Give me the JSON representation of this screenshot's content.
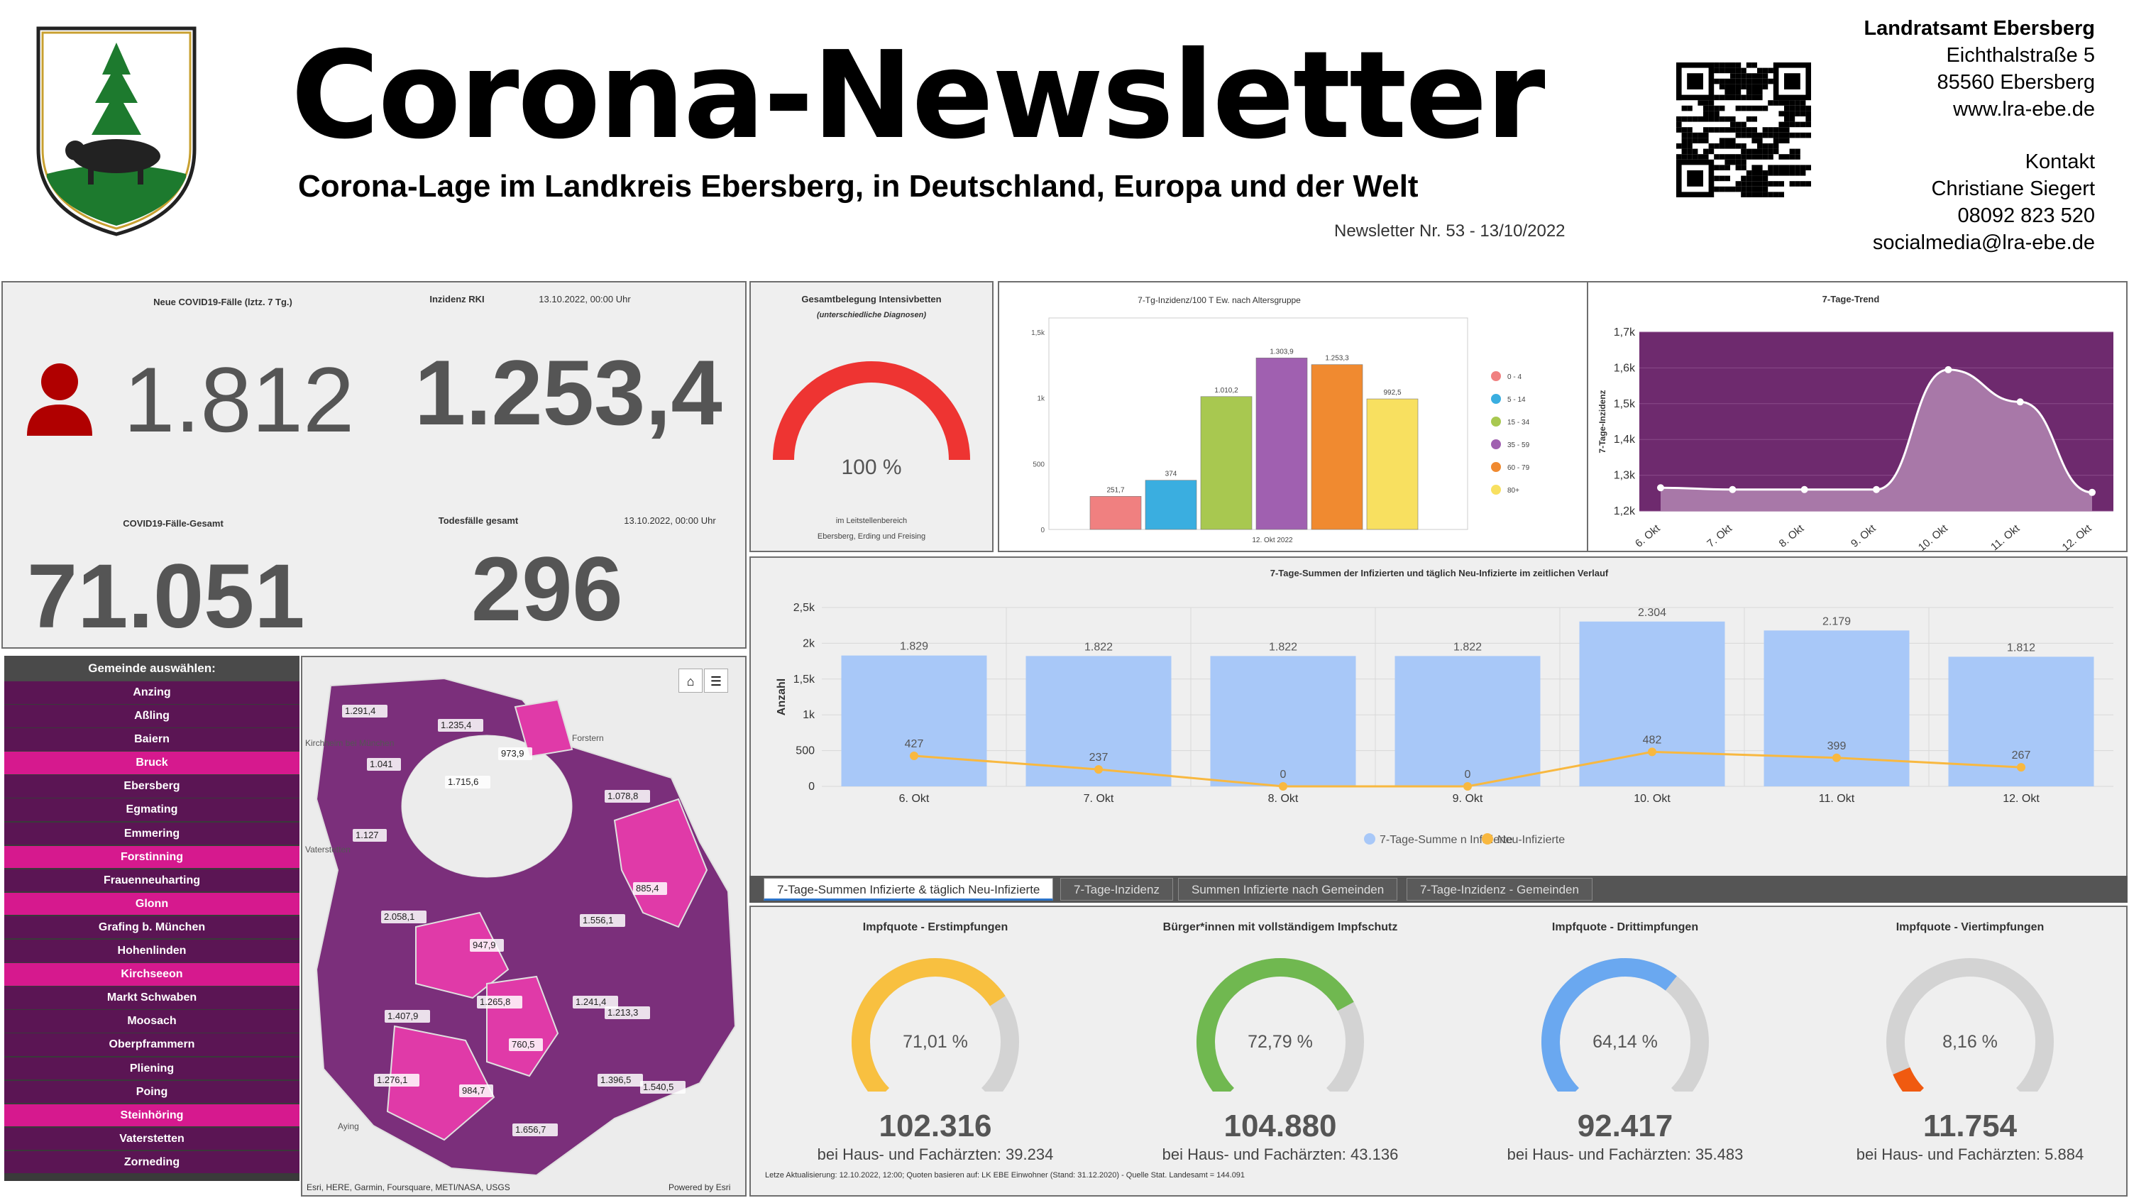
{
  "header": {
    "title": "Corona-Newsletter",
    "subtitle": "Corona-Lage im Landkreis Ebersberg, in Deutschland, Europa und der Welt",
    "newsletter_nr": "Newsletter Nr. 53 - 13/10/2022"
  },
  "contact": {
    "org": "Landratsamt Ebersberg",
    "street": "Eichthalstraße 5",
    "city": "85560 Ebersberg",
    "web": "www.lra-ebe.de",
    "kontakt": "Kontakt",
    "name": "Christiane Siegert",
    "phone": "08092 823 520",
    "email": "socialmedia@lra-ebe.de"
  },
  "kpi": {
    "new_cases_label": "Neue COVID19-Fälle (lztz. 7 Tg.)",
    "incidence_label": "Inzidenz RKI",
    "date1": "13.10.2022, 00:00 Uhr",
    "new_cases": "1.812",
    "incidence": "1.253,4",
    "total_label": "COVID19-Fälle-Gesamt",
    "deaths_label": "Todesfälle gesamt",
    "date2": "13.10.2022, 00:00 Uhr",
    "total": "71.051",
    "deaths": "296"
  },
  "icu": {
    "title": "Gesamtbelegung Intensivbetten",
    "subtitle": "(unterschiedliche Diagnosen)",
    "value": "100 %",
    "fraction": 1.0,
    "note1": "im Leitstellenbereich",
    "note2": "Ebersberg, Erding und Freising",
    "color": "#ee3432"
  },
  "age_chart": {
    "title": "7-Tg-Inzidenz/100 T Ew. nach Altersgruppe",
    "xlabel": "12. Okt 2022",
    "yticks": [
      "1,5k",
      "1k",
      "500",
      "0"
    ],
    "ymax": 1500,
    "bars": [
      {
        "label": "0 - 4",
        "value": 251.7,
        "text": "251,7",
        "color": "#f08080"
      },
      {
        "label": "5 - 14",
        "value": 374,
        "text": "374",
        "color": "#3aaee0"
      },
      {
        "label": "15 - 34",
        "value": 1010.2,
        "text": "1.010,2",
        "color": "#a8c850"
      },
      {
        "label": "35 - 59",
        "value": 1303.9,
        "text": "1.303,9",
        "color": "#a060b0"
      },
      {
        "label": "60 - 79",
        "value": 1253.3,
        "text": "1.253,3",
        "color": "#f08a30"
      },
      {
        "label": "80+",
        "value": 992.5,
        "text": "992,5",
        "color": "#f8e060"
      }
    ]
  },
  "trend": {
    "title": "7-Tage-Trend",
    "ylabel": "7-Tage-Inzidenz",
    "yticks": [
      "1,7k",
      "1,6k",
      "1,5k",
      "1,4k",
      "1,3k",
      "1,2k"
    ],
    "ymin": 1200,
    "ymax": 1700,
    "x": [
      "6. Okt",
      "7. Okt",
      "8. Okt",
      "9. Okt",
      "10. Okt",
      "11. Okt",
      "12. Okt"
    ],
    "values": [
      1265,
      1260,
      1260,
      1260,
      1595,
      1505,
      1252
    ]
  },
  "weekly": {
    "title": "7-Tage-Summen der Infizierten und täglich Neu-Infizierte im zeitlichen Verlauf",
    "ylabel": "Anzahl",
    "yticks": [
      "2,5k",
      "2k",
      "1,5k",
      "1k",
      "500",
      "0"
    ],
    "ymax": 2500,
    "x": [
      "6. Okt",
      "7. Okt",
      "8. Okt",
      "9. Okt",
      "10. Okt",
      "11. Okt",
      "12. Okt"
    ],
    "sums": [
      1829,
      1822,
      1822,
      1822,
      2304,
      2179,
      1812
    ],
    "sums_text": [
      "1.829",
      "1.822",
      "1.822",
      "1.822",
      "2.304",
      "2.179",
      "1.812"
    ],
    "new": [
      427,
      237,
      0,
      0,
      482,
      399,
      267
    ],
    "legend1": "7-Tage-Summe n Infizierte",
    "legend2": "Neu-Infizierte"
  },
  "tabs": [
    "7-Tage-Summen Infizierte & täglich Neu-Infizierte",
    "7-Tage-Inzidenz",
    "Summen Infizierte nach Gemeinden",
    "7-Tage-Inzidenz - Gemeinden"
  ],
  "gemeinden": {
    "title": "Gemeinde auswählen:",
    "items": [
      {
        "name": "Anzing",
        "selected": false
      },
      {
        "name": "Aßling",
        "selected": false
      },
      {
        "name": "Baiern",
        "selected": false
      },
      {
        "name": "Bruck",
        "selected": true
      },
      {
        "name": "Ebersberg",
        "selected": false
      },
      {
        "name": "Egmating",
        "selected": false
      },
      {
        "name": "Emmering",
        "selected": false
      },
      {
        "name": "Forstinning",
        "selected": true
      },
      {
        "name": "Frauenneuharting",
        "selected": false
      },
      {
        "name": "Glonn",
        "selected": true
      },
      {
        "name": "Grafing b. München",
        "selected": false
      },
      {
        "name": "Hohenlinden",
        "selected": false
      },
      {
        "name": "Kirchseeon",
        "selected": true
      },
      {
        "name": "Markt Schwaben",
        "selected": false
      },
      {
        "name": "Moosach",
        "selected": false
      },
      {
        "name": "Oberpframmern",
        "selected": false
      },
      {
        "name": "Pliening",
        "selected": false
      },
      {
        "name": "Poing",
        "selected": false
      },
      {
        "name": "Steinhöring",
        "selected": true
      },
      {
        "name": "Vaterstetten",
        "selected": false
      },
      {
        "name": "Zorneding",
        "selected": false
      }
    ]
  },
  "map": {
    "labels": [
      "1.291,4",
      "1.235,4",
      "973,9",
      "1.041",
      "1.715,6",
      "1.078,8",
      "1.127",
      "885,4",
      "2.058,1",
      "1.556,1",
      "947,9",
      "1.241,4",
      "1.265,8",
      "1.213,3",
      "1.407,9",
      "760,5",
      "1.276,1",
      "984,7",
      "1.396,5",
      "1.540,5",
      "1.656,7"
    ],
    "places": [
      "Kirchheim bei München",
      "Forstern",
      "Vaterstetten",
      "Aying"
    ],
    "attribution": "Esri, HERE, Garmin, Foursquare, METI/NASA, USGS",
    "powered": "Powered by Esri"
  },
  "vaccination": [
    {
      "title": "Impfquote  - Erstimpfungen",
      "pct": "71,01 %",
      "fraction": 0.7101,
      "count": "102.316",
      "sub": "bei Haus- und Fachärzten: 39.234",
      "color": "#f8c040"
    },
    {
      "title": "Bürger*innen mit vollständigem Impfschutz",
      "pct": "72,79 %",
      "fraction": 0.7279,
      "count": "104.880",
      "sub": "bei Haus- und Fachärzten: 43.136",
      "color": "#70b850"
    },
    {
      "title": "Impfquote  - Drittimpfungen",
      "pct": "64,14 %",
      "fraction": 0.6414,
      "count": "92.417",
      "sub": "bei Haus- und Fachärzten: 35.483",
      "color": "#6aa8f0"
    },
    {
      "title": "Impfquote  - Viertimpfungen",
      "pct": "8,16 %",
      "fraction": 0.0816,
      "count": "11.754",
      "sub": "bei Haus- und Fachärzten: 5.884",
      "color": "#f05a10"
    }
  ],
  "footnote": "Letze Aktualisierung: 12.10.2022, 12:00; Quoten basieren auf: LK EBE Einwohner (Stand: 31.12.2020) - Quelle Stat. Landesamt = 144.091"
}
